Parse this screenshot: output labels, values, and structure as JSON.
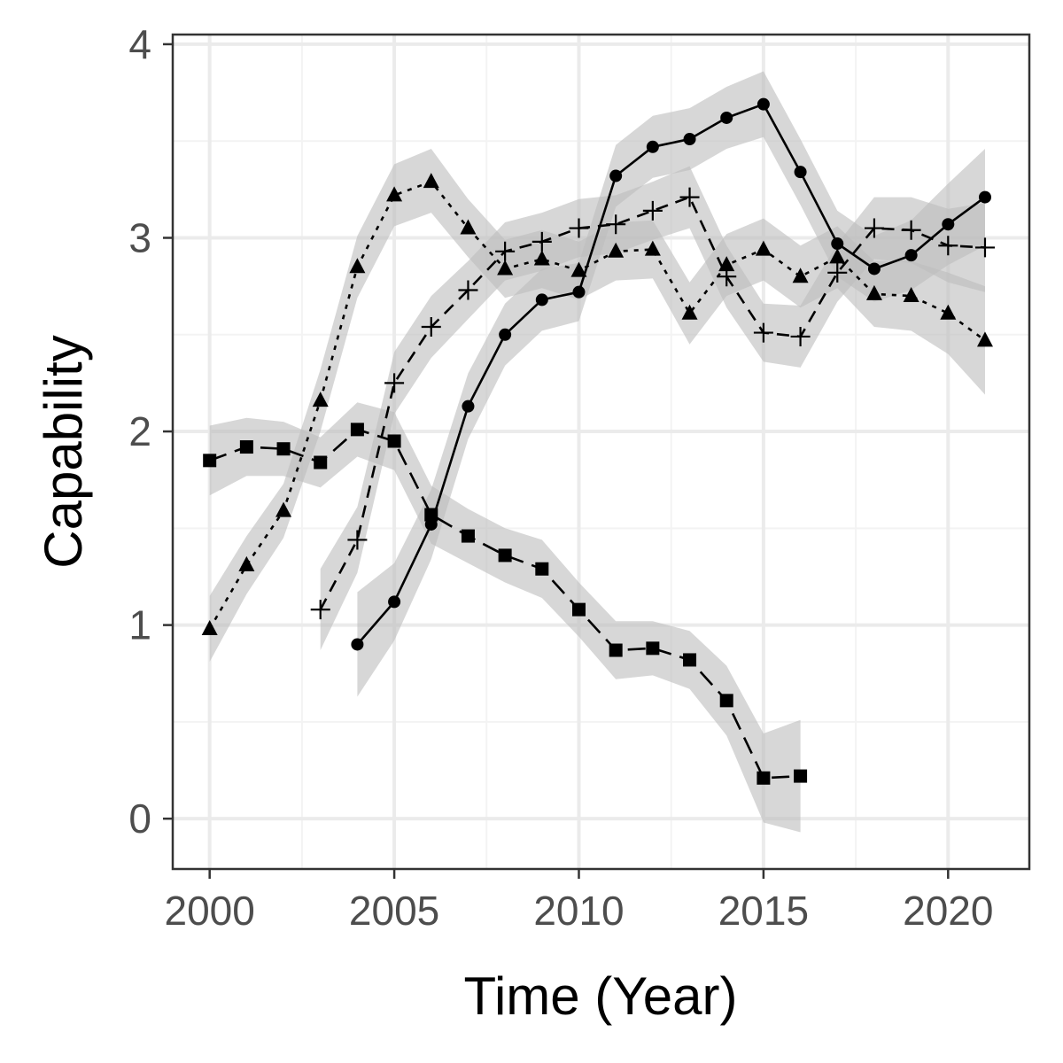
{
  "chart_data": {
    "type": "line",
    "title": "",
    "xlabel": "Time (Year)",
    "ylabel": "Capability",
    "xlim": [
      1999,
      2022.2
    ],
    "ylim": [
      -0.26,
      4.05
    ],
    "x_ticks": [
      2000,
      2005,
      2010,
      2015,
      2020
    ],
    "y_ticks": [
      0,
      1,
      2,
      3,
      4
    ],
    "grid": true,
    "legend": "none",
    "colors": {
      "line": "#000000",
      "band": "#bdbdbd",
      "grid_major": "#ebebeb",
      "grid_minor": "#f3f3f3",
      "border": "#333333"
    },
    "series": [
      {
        "marker": "square",
        "dash": "long-dash",
        "x": [
          2000,
          2001,
          2002,
          2003,
          2004,
          2005,
          2006,
          2007,
          2008,
          2009,
          2010,
          2011,
          2012,
          2013,
          2014,
          2015,
          2016
        ],
        "y": [
          1.85,
          1.92,
          1.91,
          1.84,
          2.01,
          1.95,
          1.57,
          1.46,
          1.36,
          1.29,
          1.08,
          0.87,
          0.88,
          0.82,
          0.61,
          0.21,
          0.22
        ],
        "lower": [
          1.67,
          1.77,
          1.77,
          1.71,
          1.87,
          1.8,
          1.42,
          1.32,
          1.22,
          1.14,
          0.94,
          0.72,
          0.74,
          0.67,
          0.43,
          -0.02,
          -0.07
        ],
        "upper": [
          2.03,
          2.07,
          2.05,
          1.97,
          2.15,
          2.1,
          1.72,
          1.6,
          1.5,
          1.44,
          1.22,
          1.02,
          1.02,
          0.97,
          0.79,
          0.44,
          0.51
        ]
      },
      {
        "marker": "triangle",
        "dash": "dotted",
        "x": [
          2000,
          2001,
          2002,
          2003,
          2004,
          2005,
          2006,
          2007,
          2008,
          2009,
          2010,
          2011,
          2012,
          2013,
          2014,
          2015,
          2016,
          2017,
          2018,
          2019,
          2020,
          2021
        ],
        "y": [
          0.98,
          1.31,
          1.59,
          2.16,
          2.85,
          3.22,
          3.29,
          3.05,
          2.84,
          2.89,
          2.83,
          2.93,
          2.94,
          2.61,
          2.86,
          2.94,
          2.8,
          2.9,
          2.71,
          2.7,
          2.61,
          2.47
        ],
        "lower": [
          0.81,
          1.16,
          1.45,
          2.0,
          2.69,
          3.06,
          3.13,
          2.9,
          2.69,
          2.74,
          2.68,
          2.78,
          2.79,
          2.45,
          2.7,
          2.78,
          2.64,
          2.74,
          2.54,
          2.52,
          2.4,
          2.19
        ],
        "upper": [
          1.15,
          1.46,
          1.73,
          2.32,
          3.01,
          3.38,
          3.46,
          3.2,
          2.99,
          3.04,
          2.98,
          3.08,
          3.09,
          2.77,
          3.02,
          3.1,
          2.96,
          3.06,
          2.88,
          2.88,
          2.82,
          2.75
        ]
      },
      {
        "marker": "plus",
        "dash": "dashed",
        "x": [
          2003,
          2004,
          2005,
          2006,
          2007,
          2008,
          2009,
          2010,
          2011,
          2012,
          2013,
          2014,
          2015,
          2016,
          2017,
          2018,
          2019,
          2020,
          2021
        ],
        "y": [
          1.08,
          1.44,
          2.25,
          2.54,
          2.73,
          2.93,
          2.98,
          3.05,
          3.07,
          3.14,
          3.21,
          2.8,
          2.51,
          2.49,
          2.82,
          3.05,
          3.04,
          2.96,
          2.95
        ],
        "lower": [
          0.87,
          1.27,
          2.09,
          2.38,
          2.58,
          2.78,
          2.83,
          2.9,
          2.92,
          2.99,
          3.05,
          2.64,
          2.36,
          2.33,
          2.67,
          2.89,
          2.87,
          2.77,
          2.72
        ],
        "upper": [
          1.29,
          1.61,
          2.41,
          2.7,
          2.88,
          3.08,
          3.13,
          3.2,
          3.22,
          3.29,
          3.37,
          2.96,
          2.66,
          2.65,
          2.97,
          3.21,
          3.21,
          3.15,
          3.18
        ]
      },
      {
        "marker": "circle",
        "dash": "solid",
        "x": [
          2004,
          2005,
          2006,
          2007,
          2008,
          2009,
          2010,
          2011,
          2012,
          2013,
          2014,
          2015,
          2016,
          2017,
          2018,
          2019,
          2020,
          2021
        ],
        "y": [
          0.9,
          1.12,
          1.52,
          2.13,
          2.5,
          2.68,
          2.72,
          3.32,
          3.47,
          3.51,
          3.62,
          3.69,
          3.34,
          2.97,
          2.84,
          2.91,
          3.07,
          3.21
        ],
        "lower": [
          0.63,
          0.92,
          1.34,
          1.96,
          2.34,
          2.52,
          2.57,
          3.16,
          3.31,
          3.35,
          3.46,
          3.52,
          3.17,
          2.8,
          2.67,
          2.73,
          2.86,
          2.96
        ],
        "upper": [
          1.17,
          1.32,
          1.7,
          2.3,
          2.66,
          2.84,
          2.87,
          3.48,
          3.63,
          3.67,
          3.78,
          3.86,
          3.51,
          3.14,
          3.01,
          3.09,
          3.28,
          3.46
        ]
      }
    ]
  }
}
